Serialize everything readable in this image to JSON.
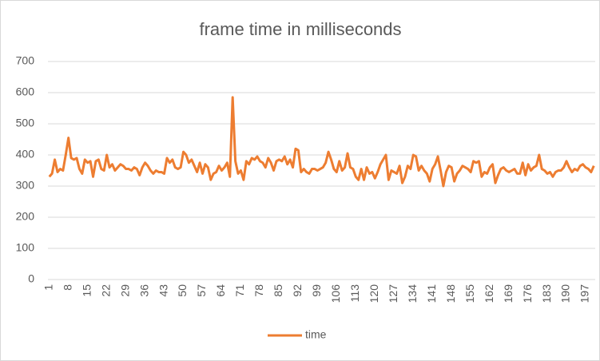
{
  "chart_data": {
    "type": "line",
    "title": "frame time in milliseconds",
    "categories": [
      1,
      null,
      null,
      null,
      null,
      null,
      null,
      8,
      null,
      null,
      null,
      null,
      null,
      null,
      15,
      null,
      null,
      null,
      null,
      null,
      null,
      22,
      null,
      null,
      null,
      null,
      null,
      null,
      29,
      null,
      null,
      null,
      null,
      null,
      null,
      36,
      null,
      null,
      null,
      null,
      null,
      null,
      43,
      null,
      null,
      null,
      null,
      null,
      null,
      50,
      null,
      null,
      null,
      null,
      null,
      null,
      57,
      null,
      null,
      null,
      null,
      null,
      null,
      64,
      null,
      null,
      null,
      null,
      null,
      null,
      71,
      null,
      null,
      null,
      null,
      null,
      null,
      78,
      null,
      null,
      null,
      null,
      null,
      null,
      85,
      null,
      null,
      null,
      null,
      null,
      null,
      92,
      null,
      null,
      null,
      null,
      null,
      null,
      99,
      null,
      null,
      null,
      null,
      null,
      null,
      106,
      null,
      null,
      null,
      null,
      null,
      null,
      113,
      null,
      null,
      null,
      null,
      null,
      null,
      120,
      null,
      null,
      null,
      null,
      null,
      null,
      127,
      null,
      null,
      null,
      null,
      null,
      null,
      134,
      null,
      null,
      null,
      null,
      null,
      null,
      141,
      null,
      null,
      null,
      null,
      null,
      null,
      148,
      null,
      null,
      null,
      null,
      null,
      null,
      155,
      null,
      null,
      null,
      null,
      null,
      null,
      162,
      null,
      null,
      null,
      null,
      null,
      null,
      169,
      null,
      null,
      null,
      null,
      null,
      null,
      176,
      null,
      null,
      null,
      null,
      null,
      null,
      183,
      null,
      null,
      null,
      null,
      null,
      null,
      190,
      null,
      null,
      null,
      null,
      null,
      null,
      197,
      null,
      null,
      null
    ],
    "series": [
      {
        "name": "time",
        "color": "#ed7d31",
        "values": [
          330,
          340,
          385,
          345,
          355,
          350,
          400,
          455,
          390,
          385,
          390,
          355,
          340,
          385,
          375,
          380,
          330,
          380,
          385,
          355,
          350,
          400,
          360,
          370,
          350,
          360,
          370,
          365,
          355,
          355,
          350,
          360,
          355,
          335,
          360,
          375,
          365,
          350,
          340,
          350,
          345,
          345,
          340,
          390,
          375,
          385,
          360,
          355,
          360,
          410,
          400,
          375,
          385,
          365,
          345,
          375,
          340,
          370,
          360,
          320,
          340,
          345,
          365,
          350,
          360,
          375,
          330,
          585,
          380,
          340,
          350,
          320,
          380,
          370,
          390,
          385,
          395,
          380,
          375,
          360,
          390,
          375,
          350,
          380,
          385,
          380,
          395,
          370,
          385,
          360,
          420,
          415,
          345,
          355,
          345,
          340,
          355,
          355,
          350,
          355,
          360,
          375,
          410,
          385,
          355,
          345,
          380,
          350,
          360,
          405,
          360,
          355,
          330,
          320,
          355,
          320,
          360,
          340,
          345,
          325,
          345,
          370,
          385,
          400,
          320,
          350,
          345,
          340,
          365,
          310,
          330,
          365,
          355,
          400,
          395,
          350,
          365,
          350,
          340,
          315,
          355,
          370,
          395,
          350,
          300,
          345,
          365,
          360,
          315,
          340,
          350,
          365,
          360,
          355,
          345,
          380,
          375,
          380,
          330,
          345,
          340,
          360,
          370,
          310,
          335,
          355,
          360,
          350,
          345,
          350,
          355,
          340,
          340,
          375,
          335,
          370,
          350,
          360,
          365,
          400,
          355,
          350,
          340,
          345,
          330,
          345,
          350,
          350,
          360,
          380,
          360,
          345,
          355,
          350,
          365,
          370,
          360,
          355,
          345,
          365
        ]
      }
    ],
    "ylim": [
      0,
      700
    ],
    "yticks": [
      0,
      100,
      200,
      300,
      400,
      500,
      600,
      700
    ],
    "grid": true,
    "legend": "bottom"
  }
}
